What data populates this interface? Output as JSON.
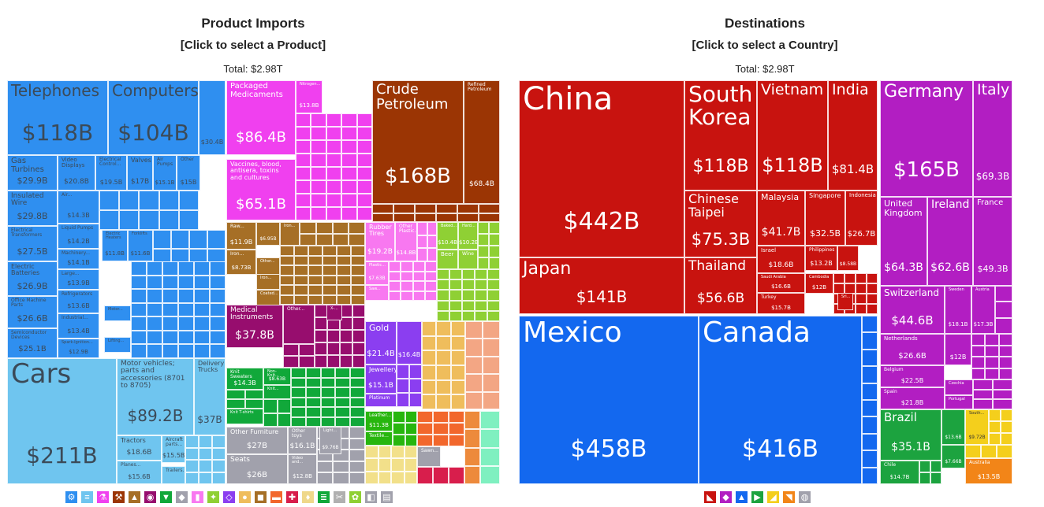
{
  "left": {
    "title": "Product Imports",
    "subtitle": "[Click to select a Product]",
    "total": "Total: $2.98T"
  },
  "right": {
    "title": "Destinations",
    "subtitle": "[Click to select a Country]",
    "total": "Total: $2.98T"
  },
  "products": {
    "telephones": {
      "name": "Telephones",
      "value": "$118B"
    },
    "computers": {
      "name": "Computers",
      "value": "$104B"
    },
    "small1": {
      "value": "$30.4B"
    },
    "gas_turbines": {
      "name": "Gas Turbines",
      "value": "$29.9B"
    },
    "video_displays": {
      "name": "Video Displays",
      "value": "$20.8B"
    },
    "electrical_control": {
      "name": "Electrical Control...",
      "value": "$19.5B"
    },
    "valves": {
      "name": "Valves",
      "value": "$17B"
    },
    "air_pumps": {
      "name": "Air Pumps",
      "value": "$15.1B"
    },
    "other_m": {
      "name": "Other",
      "value": "$15B"
    },
    "insulated_wire": {
      "name": "Insulated Wire",
      "value": "$29.8B"
    },
    "electrical_transformers": {
      "name": "Electrical Transformers",
      "value": "$27.5B"
    },
    "electric_batteries": {
      "name": "Electric Batteries",
      "value": "$26.9B"
    },
    "office_parts": {
      "name": "Office Machine Parts",
      "value": "$26.6B"
    },
    "semiconductor": {
      "name": "Semiconductor Devices",
      "value": "$25.1B"
    },
    "air_cond": {
      "name": "Air...",
      "value": "$14.3B"
    },
    "liquid_pumps": {
      "name": "Liquid Pumps",
      "value": "$14.2B"
    },
    "machinery": {
      "name": "Machinery...",
      "value": "$14.1B"
    },
    "large": {
      "name": "Large...",
      "value": "$13.9B"
    },
    "refrigerators": {
      "name": "Refrigerators",
      "value": "$13.6B"
    },
    "industrial": {
      "name": "Industrial...",
      "value": "$13.4B"
    },
    "spark_ignition": {
      "name": "Spark-Ignition...",
      "value": "$12.9B"
    },
    "electric_heaters": {
      "name": "Electric Heaters",
      "value": "$11.8B"
    },
    "forklifts": {
      "name": "Forklifts",
      "value": "$11.6B"
    },
    "motor": {
      "name": "Motor...",
      "value": ""
    },
    "lifting": {
      "name": "Lifting...",
      "value": ""
    },
    "cars": {
      "name": "Cars",
      "value": "$211B"
    },
    "vehicle_parts": {
      "name": "Motor vehicles; parts and accessories (8701 to 8705)",
      "value": "$89.2B"
    },
    "delivery_trucks": {
      "name": "Delivery Trucks",
      "value": "$37B"
    },
    "tractors": {
      "name": "Tractors",
      "value": "$18.6B"
    },
    "aircraft_parts": {
      "name": "Aircraft parts...",
      "value": "$15.5B"
    },
    "planes": {
      "name": "Planes...",
      "value": "$15.6B"
    },
    "trailers": {
      "name": "Trailers...",
      "value": ""
    },
    "packaged_medicaments": {
      "name": "Packaged Medicaments",
      "value": "$86.4B"
    },
    "vaccines": {
      "name": "Vaccines, blood, antisera, toxins and cultures",
      "value": "$65.1B"
    },
    "nitrogen": {
      "name": "Nitrogen...",
      "value": "$13.8B"
    },
    "crude_petroleum": {
      "name": "Crude Petroleum",
      "value": "$168B"
    },
    "refined_petroleum": {
      "name": "Refined Petroleum",
      "value": "$68.4B"
    },
    "raw": {
      "name": "Raw...",
      "value": "$11.9B"
    },
    "iron1": {
      "name": "Iron...",
      "value": "$8.73B"
    },
    "s695": {
      "value": "$6.95B"
    },
    "iron2": {
      "name": "Iron..."
    },
    "other_metal": {
      "name": "Other..."
    },
    "iron3": {
      "name": "Iron..."
    },
    "coated": {
      "name": "Coated..."
    },
    "rubber_tires": {
      "name": "Rubber Tires",
      "value": "$19.2B"
    },
    "other_plastic": {
      "name": "Other Plastic...",
      "value": "$14.8B"
    },
    "plastic": {
      "name": "Plastic...",
      "value": "$7.63B"
    },
    "saw": {
      "name": "Saw..."
    },
    "baked": {
      "name": "Baked...",
      "value": "$10.4B"
    },
    "hard": {
      "name": "Hard...",
      "value": "$10.2B"
    },
    "beer": {
      "name": "Beer"
    },
    "wine": {
      "name": "Wine"
    },
    "medical_instruments": {
      "name": "Medical Instruments",
      "value": "$37.8B"
    },
    "other_inst": {
      "name": "Other..."
    },
    "x_ray": {
      "name": "X-..."
    },
    "knit_sweaters": {
      "name": "Knit Sweaters",
      "value": "$14.3B"
    },
    "non_knit": {
      "name": "Non-Knit...",
      "value": "$8.63B"
    },
    "knit2": {
      "name": "Knit..."
    },
    "knit_tshirts": {
      "name": "Knit T-shirts"
    },
    "gold": {
      "name": "Gold",
      "value": "$21.4B"
    },
    "gold2": {
      "value": "$16.4B"
    },
    "jewellery": {
      "name": "Jewellery",
      "value": "$15.1B"
    },
    "platinum": {
      "name": "Platinum"
    },
    "leather": {
      "name": "Leather...",
      "value": "$11.3B"
    },
    "textile": {
      "name": "Textile..."
    },
    "sawn": {
      "name": "Sawn..."
    },
    "other_furniture": {
      "name": "Other Furniture",
      "value": "$27B"
    },
    "other_toys": {
      "name": "Other toys",
      "value": "$16.1B"
    },
    "light": {
      "name": "Light...",
      "value": "$9.76B"
    },
    "seats": {
      "name": "Seats",
      "value": "$26B"
    },
    "video_and": {
      "name": "Video and...",
      "value": "$12.8B"
    }
  },
  "countries": {
    "china": {
      "name": "China",
      "value": "$442B"
    },
    "south_korea": {
      "name": "South Korea",
      "value": "$118B"
    },
    "vietnam": {
      "name": "Vietnam",
      "value": "$118B"
    },
    "india": {
      "name": "India",
      "value": "$81.4B"
    },
    "japan": {
      "name": "Japan",
      "value": "$141B"
    },
    "chinese_taipei": {
      "name": "Chinese Taipei",
      "value": "$75.3B"
    },
    "thailand": {
      "name": "Thailand",
      "value": "$56.6B"
    },
    "malaysia": {
      "name": "Malaysia",
      "value": "$41.7B"
    },
    "singapore": {
      "name": "Singapore",
      "value": "$32.5B"
    },
    "indonesia": {
      "name": "Indonesia",
      "value": "$26.7B"
    },
    "israel": {
      "name": "Israel",
      "value": "$18.6B"
    },
    "philippines": {
      "name": "Philippines",
      "value": "$13.2B"
    },
    "s858": {
      "value": "$8.58B"
    },
    "saudi_arabia": {
      "name": "Saudi Arabia",
      "value": "$16.6B"
    },
    "cambodia": {
      "name": "Cambodia",
      "value": "$12B"
    },
    "turkey": {
      "name": "Turkey",
      "value": "$15.7B"
    },
    "sri": {
      "name": "Sri..."
    },
    "mexico": {
      "name": "Mexico",
      "value": "$458B"
    },
    "canada": {
      "name": "Canada",
      "value": "$416B"
    },
    "germany": {
      "name": "Germany",
      "value": "$165B"
    },
    "italy": {
      "name": "Italy",
      "value": "$69.3B"
    },
    "united_kingdom": {
      "name": "United Kingdom",
      "value": "$64.3B"
    },
    "ireland": {
      "name": "Ireland",
      "value": "$62.6B"
    },
    "france": {
      "name": "France",
      "value": "$49.3B"
    },
    "switzerland": {
      "name": "Switzerland",
      "value": "$44.6B"
    },
    "sweden": {
      "name": "Sweden",
      "value": "$18.1B"
    },
    "austria": {
      "name": "Austria",
      "value": "$17.3B"
    },
    "netherlands": {
      "name": "Netherlands",
      "value": "$26.6B"
    },
    "s12b": {
      "value": "$12B"
    },
    "belgium": {
      "name": "Belgium",
      "value": "$22.5B"
    },
    "czechia": {
      "name": "Czechia"
    },
    "spain": {
      "name": "Spain",
      "value": "$21.8B"
    },
    "portugal": {
      "name": "Portugal"
    },
    "brazil": {
      "name": "Brazil",
      "value": "$35.1B"
    },
    "s136": {
      "value": "$13.6B"
    },
    "chile": {
      "name": "Chile",
      "value": "$14.7B"
    },
    "s766": {
      "value": "$7.66B"
    },
    "south": {
      "name": "South...",
      "value": "$9.72B"
    },
    "australia": {
      "name": "Australia",
      "value": "$13.5B"
    }
  },
  "colors": {
    "machines": "#2f8ff0",
    "transport": "#6fc5ef",
    "chemicals": "#f040ef",
    "minerals": "#9b3504",
    "metals": "#a66f26",
    "plastics": "#f878f0",
    "food": "#8fd034",
    "instruments": "#970d6e",
    "textiles": "#11a83a",
    "precious": "#8b3ef0",
    "hides": "#27b60e",
    "misc": "#a1a1ac",
    "stone": "#efbd5c",
    "asia": "#c8130f",
    "americas": "#1368ef",
    "europe": "#b21ec2",
    "south_america": "#1ca33f",
    "oceania": "#f28518",
    "africa": "#f4cf1c"
  },
  "product_icons": [
    "machine-icon",
    "road-icon",
    "flask-icon",
    "hammer-icon",
    "anvil-icon",
    "gauge-icon",
    "shirt-icon",
    "cube-icon",
    "bottle-icon",
    "leaf-icon",
    "gem-icon",
    "apple-icon",
    "cow-icon",
    "bread-icon",
    "shoe-icon",
    "lamp-icon",
    "stone-icon",
    "bone-icon",
    "art-icon",
    "container-icon",
    "chair-icon"
  ],
  "country_icons": [
    "asia-icon",
    "europe-icon",
    "americas-icon",
    "africa-icon",
    "south-america-icon",
    "oceania-icon",
    "other-icon"
  ]
}
